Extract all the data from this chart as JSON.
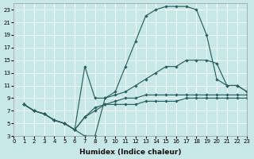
{
  "bg_color": "#c8e8e8",
  "line_color": "#2a6060",
  "grid_color": "#ffffff",
  "xlabel": "Humidex (Indice chaleur)",
  "xlim": [
    0,
    23
  ],
  "ylim": [
    3,
    24
  ],
  "xticks": [
    0,
    1,
    2,
    3,
    4,
    5,
    6,
    7,
    8,
    9,
    10,
    11,
    12,
    13,
    14,
    15,
    16,
    17,
    18,
    19,
    20,
    21,
    22,
    23
  ],
  "yticks": [
    3,
    5,
    7,
    9,
    11,
    13,
    15,
    17,
    19,
    21,
    23
  ],
  "cA_x": [
    1,
    2,
    3,
    4,
    5,
    6,
    7,
    8,
    9,
    10,
    11,
    12,
    13,
    14,
    15,
    16,
    17,
    18,
    19,
    20,
    21,
    22,
    23
  ],
  "cA_y": [
    8,
    7,
    6.5,
    5.5,
    5,
    4,
    3,
    3,
    9,
    10,
    14,
    18,
    22,
    23,
    23.5,
    23.5,
    23.5,
    23,
    19,
    12,
    11,
    11,
    10
  ],
  "cB_x": [
    1,
    2,
    3,
    4,
    5,
    6,
    7,
    8,
    9,
    10,
    11,
    12,
    13,
    14,
    15,
    16,
    17,
    18,
    19,
    20,
    21,
    22,
    23
  ],
  "cB_y": [
    8,
    7,
    6.5,
    5.5,
    5,
    4,
    14,
    9,
    9,
    9.5,
    10,
    11,
    12,
    13,
    14,
    14,
    15,
    15,
    15,
    14.5,
    11,
    11,
    10
  ],
  "cC_x": [
    1,
    2,
    3,
    4,
    5,
    6,
    7,
    8,
    9,
    10,
    11,
    12,
    13,
    14,
    15,
    16,
    17,
    18,
    19,
    20,
    21,
    22,
    23
  ],
  "cC_y": [
    8,
    7,
    6.5,
    5.5,
    5,
    4,
    6,
    7,
    8,
    8.5,
    9,
    9,
    9.5,
    9.5,
    9.5,
    9.5,
    9.5,
    9.5,
    9.5,
    9.5,
    9.5,
    9.5,
    9.5
  ],
  "cD_x": [
    1,
    2,
    3,
    4,
    5,
    6,
    7,
    8,
    9,
    10,
    11,
    12,
    13,
    14,
    15,
    16,
    17,
    18,
    19,
    20,
    21,
    22,
    23
  ],
  "cD_y": [
    8,
    7,
    6.5,
    5.5,
    5,
    4,
    6,
    7.5,
    8,
    8,
    8,
    8,
    8.5,
    8.5,
    8.5,
    8.5,
    9,
    9,
    9,
    9,
    9,
    9,
    9
  ]
}
